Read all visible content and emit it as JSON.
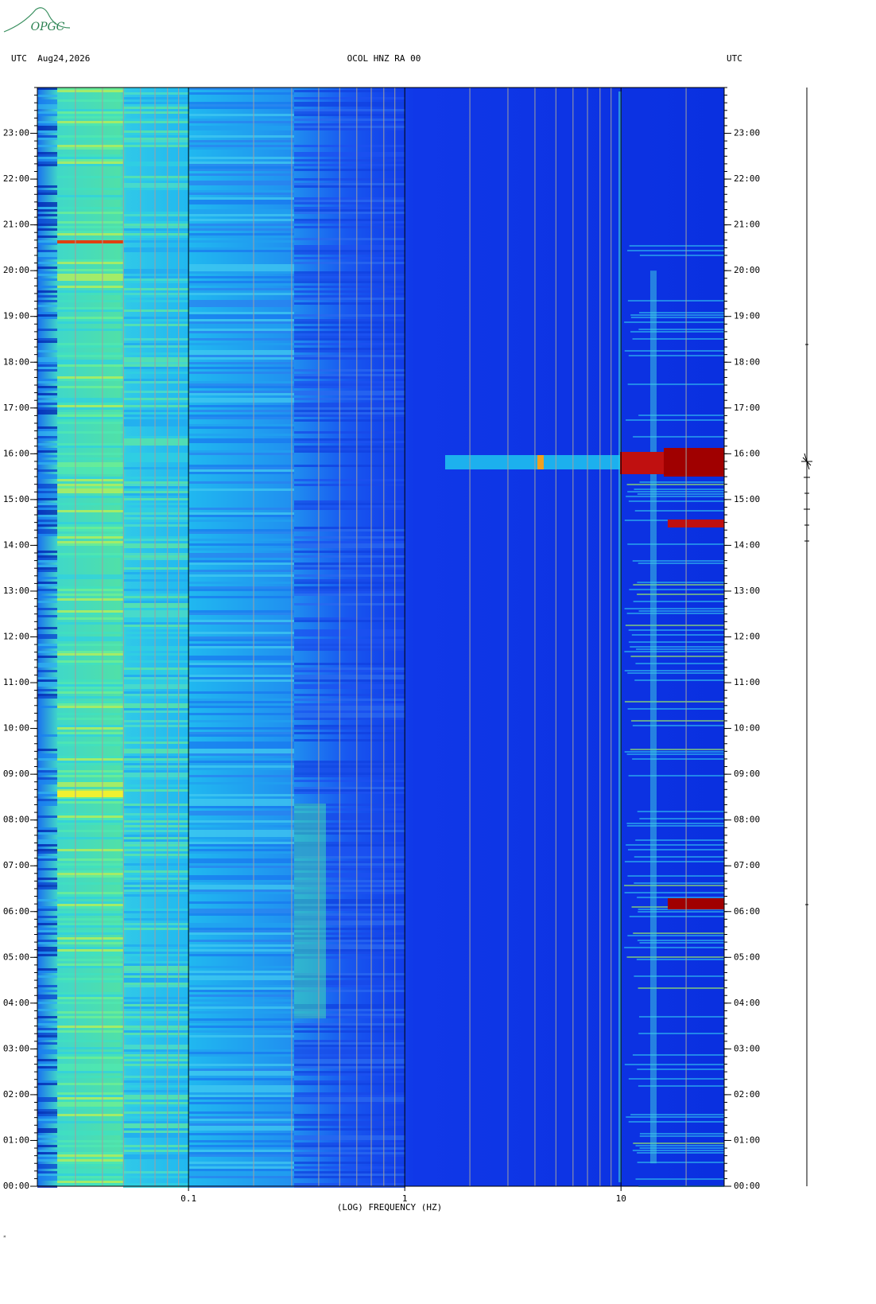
{
  "logo": "OPGC",
  "chart_data": {
    "type": "spectrogram",
    "title": "OCOL HNZ RA 00",
    "date_label": "UTC  Aug24,2026",
    "right_label": "UTC",
    "xlabel": "(LOG) FREQUENCY (HZ)",
    "xscale": "log",
    "xlim": [
      0.02,
      30
    ],
    "xticks": [
      0.1,
      1,
      10
    ],
    "ylim": [
      0,
      24
    ],
    "yticks": [
      {
        "value": 0,
        "label": "00:00"
      },
      {
        "value": 1,
        "label": "01:00"
      },
      {
        "value": 2,
        "label": "02:00"
      },
      {
        "value": 3,
        "label": "03:00"
      },
      {
        "value": 4,
        "label": "04:00"
      },
      {
        "value": 5,
        "label": "05:00"
      },
      {
        "value": 6,
        "label": "06:00"
      },
      {
        "value": 7,
        "label": "07:00"
      },
      {
        "value": 8,
        "label": "08:00"
      },
      {
        "value": 9,
        "label": "09:00"
      },
      {
        "value": 10,
        "label": "10:00"
      },
      {
        "value": 11,
        "label": "11:00"
      },
      {
        "value": 12,
        "label": "12:00"
      },
      {
        "value": 13,
        "label": "13:00"
      },
      {
        "value": 14,
        "label": "14:00"
      },
      {
        "value": 15,
        "label": "15:00"
      },
      {
        "value": 16,
        "label": "16:00"
      },
      {
        "value": 17,
        "label": "17:00"
      },
      {
        "value": 18,
        "label": "18:00"
      },
      {
        "value": 19,
        "label": "19:00"
      },
      {
        "value": 20,
        "label": "20:00"
      },
      {
        "value": 21,
        "label": "21:00"
      },
      {
        "value": 22,
        "label": "22:00"
      },
      {
        "value": 23,
        "label": "23:00"
      }
    ]
  }
}
